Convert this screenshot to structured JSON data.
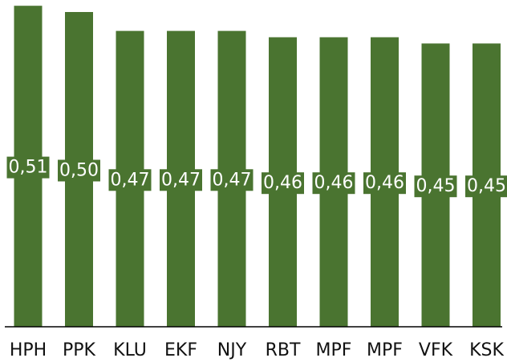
{
  "chart_data": {
    "type": "bar",
    "categories": [
      "HPH",
      "PPK",
      "KLU",
      "EKF",
      "NJY",
      "RBT",
      "MPF",
      "MPF",
      "VFK",
      "KSK"
    ],
    "values": [
      0.51,
      0.5,
      0.47,
      0.47,
      0.47,
      0.46,
      0.46,
      0.46,
      0.45,
      0.45
    ],
    "value_labels": [
      "0,51",
      "0,50",
      "0,47",
      "0,47",
      "0,47",
      "0,46",
      "0,46",
      "0,46",
      "0,45",
      "0,45"
    ],
    "title": "",
    "xlabel": "",
    "ylabel": "",
    "ylim": [
      0,
      0.5115
    ],
    "grid": false,
    "legend": "none",
    "bar_color": "#4a7430"
  }
}
